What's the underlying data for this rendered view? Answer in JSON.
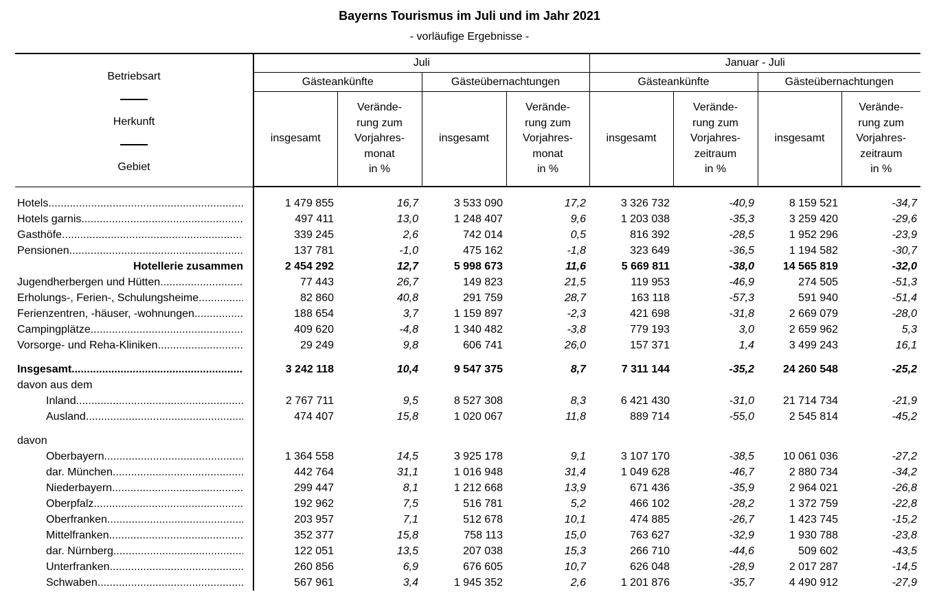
{
  "title": "Bayerns Tourismus im Juli und im Jahr 2021",
  "subtitle": "- vorläufige Ergebnisse -",
  "header": {
    "stub": [
      "Betriebsart",
      "Herkunft",
      "Gebiet"
    ],
    "periods": [
      "Juli",
      "Januar - Juli"
    ],
    "groups": [
      "Gästeankünfte",
      "Gästeübernachtungen",
      "Gästeankünfte",
      "Gästeübernachtungen"
    ],
    "columns": [
      "insgesamt",
      "Verände-\nrung zum\nVorjahres-\nmonat\nin %",
      "insgesamt",
      "Verände-\nrung zum\nVorjahres-\nmonat\nin %",
      "insgesamt",
      "Verände-\nrung zum\nVorjahres-\nzeitraum\nin %",
      "insgesamt",
      "Verände-\nrung zum\nVorjahres-\nzeitraum\nin %"
    ]
  },
  "rows": [
    {
      "label": "Hotels",
      "cells": [
        "1 479 855",
        "16,7",
        "3 533 090",
        "17,2",
        "3 326 732",
        "-40,9",
        "8 159 521",
        "-34,7"
      ]
    },
    {
      "label": "Hotels garnis",
      "cells": [
        "497 411",
        "13,0",
        "1 248 407",
        "9,6",
        "1 203 038",
        "-35,3",
        "3 259 420",
        "-29,6"
      ]
    },
    {
      "label": "Gasthöfe",
      "cells": [
        "339 245",
        "2,6",
        "742 014",
        "0,5",
        "816 392",
        "-28,5",
        "1 952 296",
        "-23,9"
      ]
    },
    {
      "label": "Pensionen",
      "cells": [
        "137 781",
        "-1,0",
        "475 162",
        "-1,8",
        "323 649",
        "-36,5",
        "1 194 582",
        "-30,7"
      ]
    },
    {
      "label": "Hotellerie zusammen",
      "cells": [
        "2 454 292",
        "12,7",
        "5 998 673",
        "11,6",
        "5 669 811",
        "-38,0",
        "14 565 819",
        "-32,0"
      ]
    },
    {
      "label": "Jugendherbergen und Hütten",
      "cells": [
        "77 443",
        "26,7",
        "149 823",
        "21,5",
        "119 953",
        "-46,9",
        "274 505",
        "-51,3"
      ]
    },
    {
      "label": "Erholungs-, Ferien-, Schulungsheime",
      "cells": [
        "82 860",
        "40,8",
        "291 759",
        "28,7",
        "163 118",
        "-57,3",
        "591 940",
        "-51,4"
      ]
    },
    {
      "label": "Ferienzentren, -häuser, -wohnungen",
      "cells": [
        "188 654",
        "3,7",
        "1 159 897",
        "-2,3",
        "421 698",
        "-31,8",
        "2 669 079",
        "-28,0"
      ]
    },
    {
      "label": "Campingplätze",
      "cells": [
        "409 620",
        "-4,8",
        "1 340 482",
        "-3,8",
        "779 193",
        "3,0",
        "2 659 962",
        "5,3"
      ]
    },
    {
      "label": "Vorsorge- und Reha-Kliniken",
      "cells": [
        "29 249",
        "9,8",
        "606 741",
        "26,0",
        "157 371",
        "1,4",
        "3 499 243",
        "16,1"
      ]
    },
    {
      "label": "Insgesamt",
      "cells": [
        "3 242 118",
        "10,4",
        "9 547 375",
        "8,7",
        "7 311 144",
        "-35,2",
        "24 260 548",
        "-25,2"
      ]
    },
    {
      "label": "davon aus dem",
      "cells": []
    },
    {
      "label": "Inland",
      "cells": [
        "2 767 711",
        "9,5",
        "8 527 308",
        "8,3",
        "6 421 430",
        "-31,0",
        "21 714 734",
        "-21,9"
      ]
    },
    {
      "label": "Ausland",
      "cells": [
        "474 407",
        "15,8",
        "1 020 067",
        "11,8",
        "889 714",
        "-55,0",
        "2 545 814",
        "-45,2"
      ]
    },
    {
      "label": "davon",
      "cells": []
    },
    {
      "label": "Oberbayern",
      "cells": [
        "1 364 558",
        "14,5",
        "3 925 178",
        "9,1",
        "3 107 170",
        "-38,5",
        "10 061 036",
        "-27,2"
      ]
    },
    {
      "label": "dar. München",
      "cells": [
        "442 764",
        "31,1",
        "1 016 948",
        "31,4",
        "1 049 628",
        "-46,7",
        "2 880 734",
        "-34,2"
      ]
    },
    {
      "label": "Niederbayern",
      "cells": [
        "299 447",
        "8,1",
        "1 212 668",
        "13,9",
        "671 436",
        "-35,9",
        "2 964 021",
        "-26,8"
      ]
    },
    {
      "label": "Oberpfalz",
      "cells": [
        "192 962",
        "7,5",
        "516 781",
        "5,2",
        "466 102",
        "-28,2",
        "1 372 759",
        "-22,8"
      ]
    },
    {
      "label": "Oberfranken",
      "cells": [
        "203 957",
        "7,1",
        "512 678",
        "10,1",
        "474 885",
        "-26,7",
        "1 423 745",
        "-15,2"
      ]
    },
    {
      "label": "Mittelfranken",
      "cells": [
        "352 377",
        "15,8",
        "758 113",
        "15,0",
        "763 627",
        "-32,9",
        "1 930 788",
        "-23,8"
      ]
    },
    {
      "label": "dar. Nürnberg",
      "cells": [
        "122 051",
        "13,5",
        "207 038",
        "15,3",
        "266 710",
        "-44,6",
        "509 602",
        "-43,5"
      ]
    },
    {
      "label": "Unterfranken",
      "cells": [
        "260 856",
        "6,9",
        "676 605",
        "10,7",
        "626 048",
        "-28,9",
        "2 017 287",
        "-14,5"
      ]
    },
    {
      "label": "Schwaben",
      "cells": [
        "567 961",
        "3,4",
        "1 945 352",
        "2,6",
        "1 201 876",
        "-35,7",
        "4 490 912",
        "-27,9"
      ]
    }
  ]
}
